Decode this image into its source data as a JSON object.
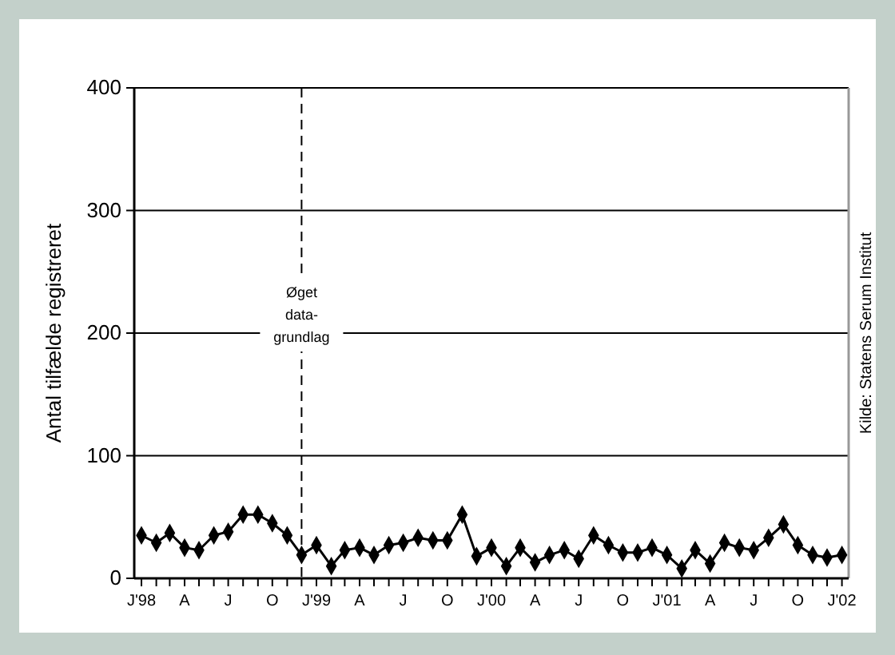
{
  "chart_data": {
    "type": "line",
    "ylabel": "Antal tilfælde registreret",
    "x": [
      "1998-01",
      "1998-02",
      "1998-03",
      "1998-04",
      "1998-05",
      "1998-06",
      "1998-07",
      "1998-08",
      "1998-09",
      "1998-10",
      "1998-11",
      "1998-12",
      "1999-01",
      "1999-02",
      "1999-03",
      "1999-04",
      "1999-05",
      "1999-06",
      "1999-07",
      "1999-08",
      "1999-09",
      "1999-10",
      "1999-11",
      "1999-12",
      "2000-01",
      "2000-02",
      "2000-03",
      "2000-04",
      "2000-05",
      "2000-06",
      "2000-07",
      "2000-08",
      "2000-09",
      "2000-10",
      "2000-11",
      "2000-12",
      "2001-01",
      "2001-02",
      "2001-03",
      "2001-04",
      "2001-05",
      "2001-06",
      "2001-07",
      "2001-08",
      "2001-09",
      "2001-10",
      "2001-11",
      "2001-12",
      "2002-01"
    ],
    "series": [
      {
        "color": "#000000",
        "values": [
          35,
          29,
          37,
          25,
          23,
          35,
          38,
          52,
          52,
          45,
          35,
          19,
          27,
          10,
          23,
          25,
          19,
          27,
          29,
          33,
          31,
          31,
          52,
          18,
          25,
          10,
          25,
          13,
          19,
          23,
          16,
          35,
          27,
          21,
          21,
          25,
          19,
          8,
          23,
          12,
          29,
          25,
          23,
          33,
          44,
          27,
          19,
          17,
          19
        ]
      }
    ],
    "xlim": [
      "1997-12-17",
      "2002-01-15"
    ],
    "xticks": [
      {
        "value": "1998-01",
        "label": "J'98"
      },
      {
        "value": "1998-02",
        "label": null
      },
      {
        "value": "1998-03",
        "label": null
      },
      {
        "value": "1998-04",
        "label": "A"
      },
      {
        "value": "1998-05",
        "label": null
      },
      {
        "value": "1998-06",
        "label": null
      },
      {
        "value": "1998-07",
        "label": "J"
      },
      {
        "value": "1998-08",
        "label": null
      },
      {
        "value": "1998-09",
        "label": null
      },
      {
        "value": "1998-10",
        "label": "O"
      },
      {
        "value": "1998-11",
        "label": null
      },
      {
        "value": "1998-12",
        "label": null
      },
      {
        "value": "1999-01",
        "label": "J'99"
      },
      {
        "value": "1999-02",
        "label": null
      },
      {
        "value": "1999-03",
        "label": null
      },
      {
        "value": "1999-04",
        "label": "A"
      },
      {
        "value": "1999-05",
        "label": null
      },
      {
        "value": "1999-06",
        "label": null
      },
      {
        "value": "1999-07",
        "label": "J"
      },
      {
        "value": "1999-08",
        "label": null
      },
      {
        "value": "1999-09",
        "label": null
      },
      {
        "value": "1999-10",
        "label": "O"
      },
      {
        "value": "1999-11",
        "label": null
      },
      {
        "value": "1999-12",
        "label": null
      },
      {
        "value": "2000-01",
        "label": "J'00"
      },
      {
        "value": "2000-02",
        "label": null
      },
      {
        "value": "2000-03",
        "label": null
      },
      {
        "value": "2000-04",
        "label": "A"
      },
      {
        "value": "2000-05",
        "label": null
      },
      {
        "value": "2000-06",
        "label": null
      },
      {
        "value": "2000-07",
        "label": "J"
      },
      {
        "value": "2000-08",
        "label": null
      },
      {
        "value": "2000-09",
        "label": null
      },
      {
        "value": "2000-10",
        "label": "O"
      },
      {
        "value": "2000-11",
        "label": null
      },
      {
        "value": "2000-12",
        "label": null
      },
      {
        "value": "2001-01",
        "label": "J'01"
      },
      {
        "value": "2001-02",
        "label": null
      },
      {
        "value": "2001-03",
        "label": null
      },
      {
        "value": "2001-04",
        "label": "A"
      },
      {
        "value": "2001-05",
        "label": null
      },
      {
        "value": "2001-06",
        "label": null
      },
      {
        "value": "2001-07",
        "label": "J"
      },
      {
        "value": "2001-08",
        "label": null
      },
      {
        "value": "2001-09",
        "label": null
      },
      {
        "value": "2001-10",
        "label": "O"
      },
      {
        "value": "2001-11",
        "label": null
      },
      {
        "value": "2001-12",
        "label": null
      },
      {
        "value": "2002-01",
        "label": "J'02"
      }
    ],
    "ylim": [
      0,
      400
    ],
    "yticks": [
      0,
      100,
      200,
      300,
      400
    ],
    "grid": "y",
    "marker": "diamond",
    "line_style": "solid",
    "ref_lines": [
      {
        "axis": "x",
        "value": "1998-12",
        "label": "Øget data-grundlag",
        "line_style": "dashed",
        "color": "#000000"
      }
    ],
    "annotations": [
      "Kilde: Statens Serum Institut"
    ]
  }
}
